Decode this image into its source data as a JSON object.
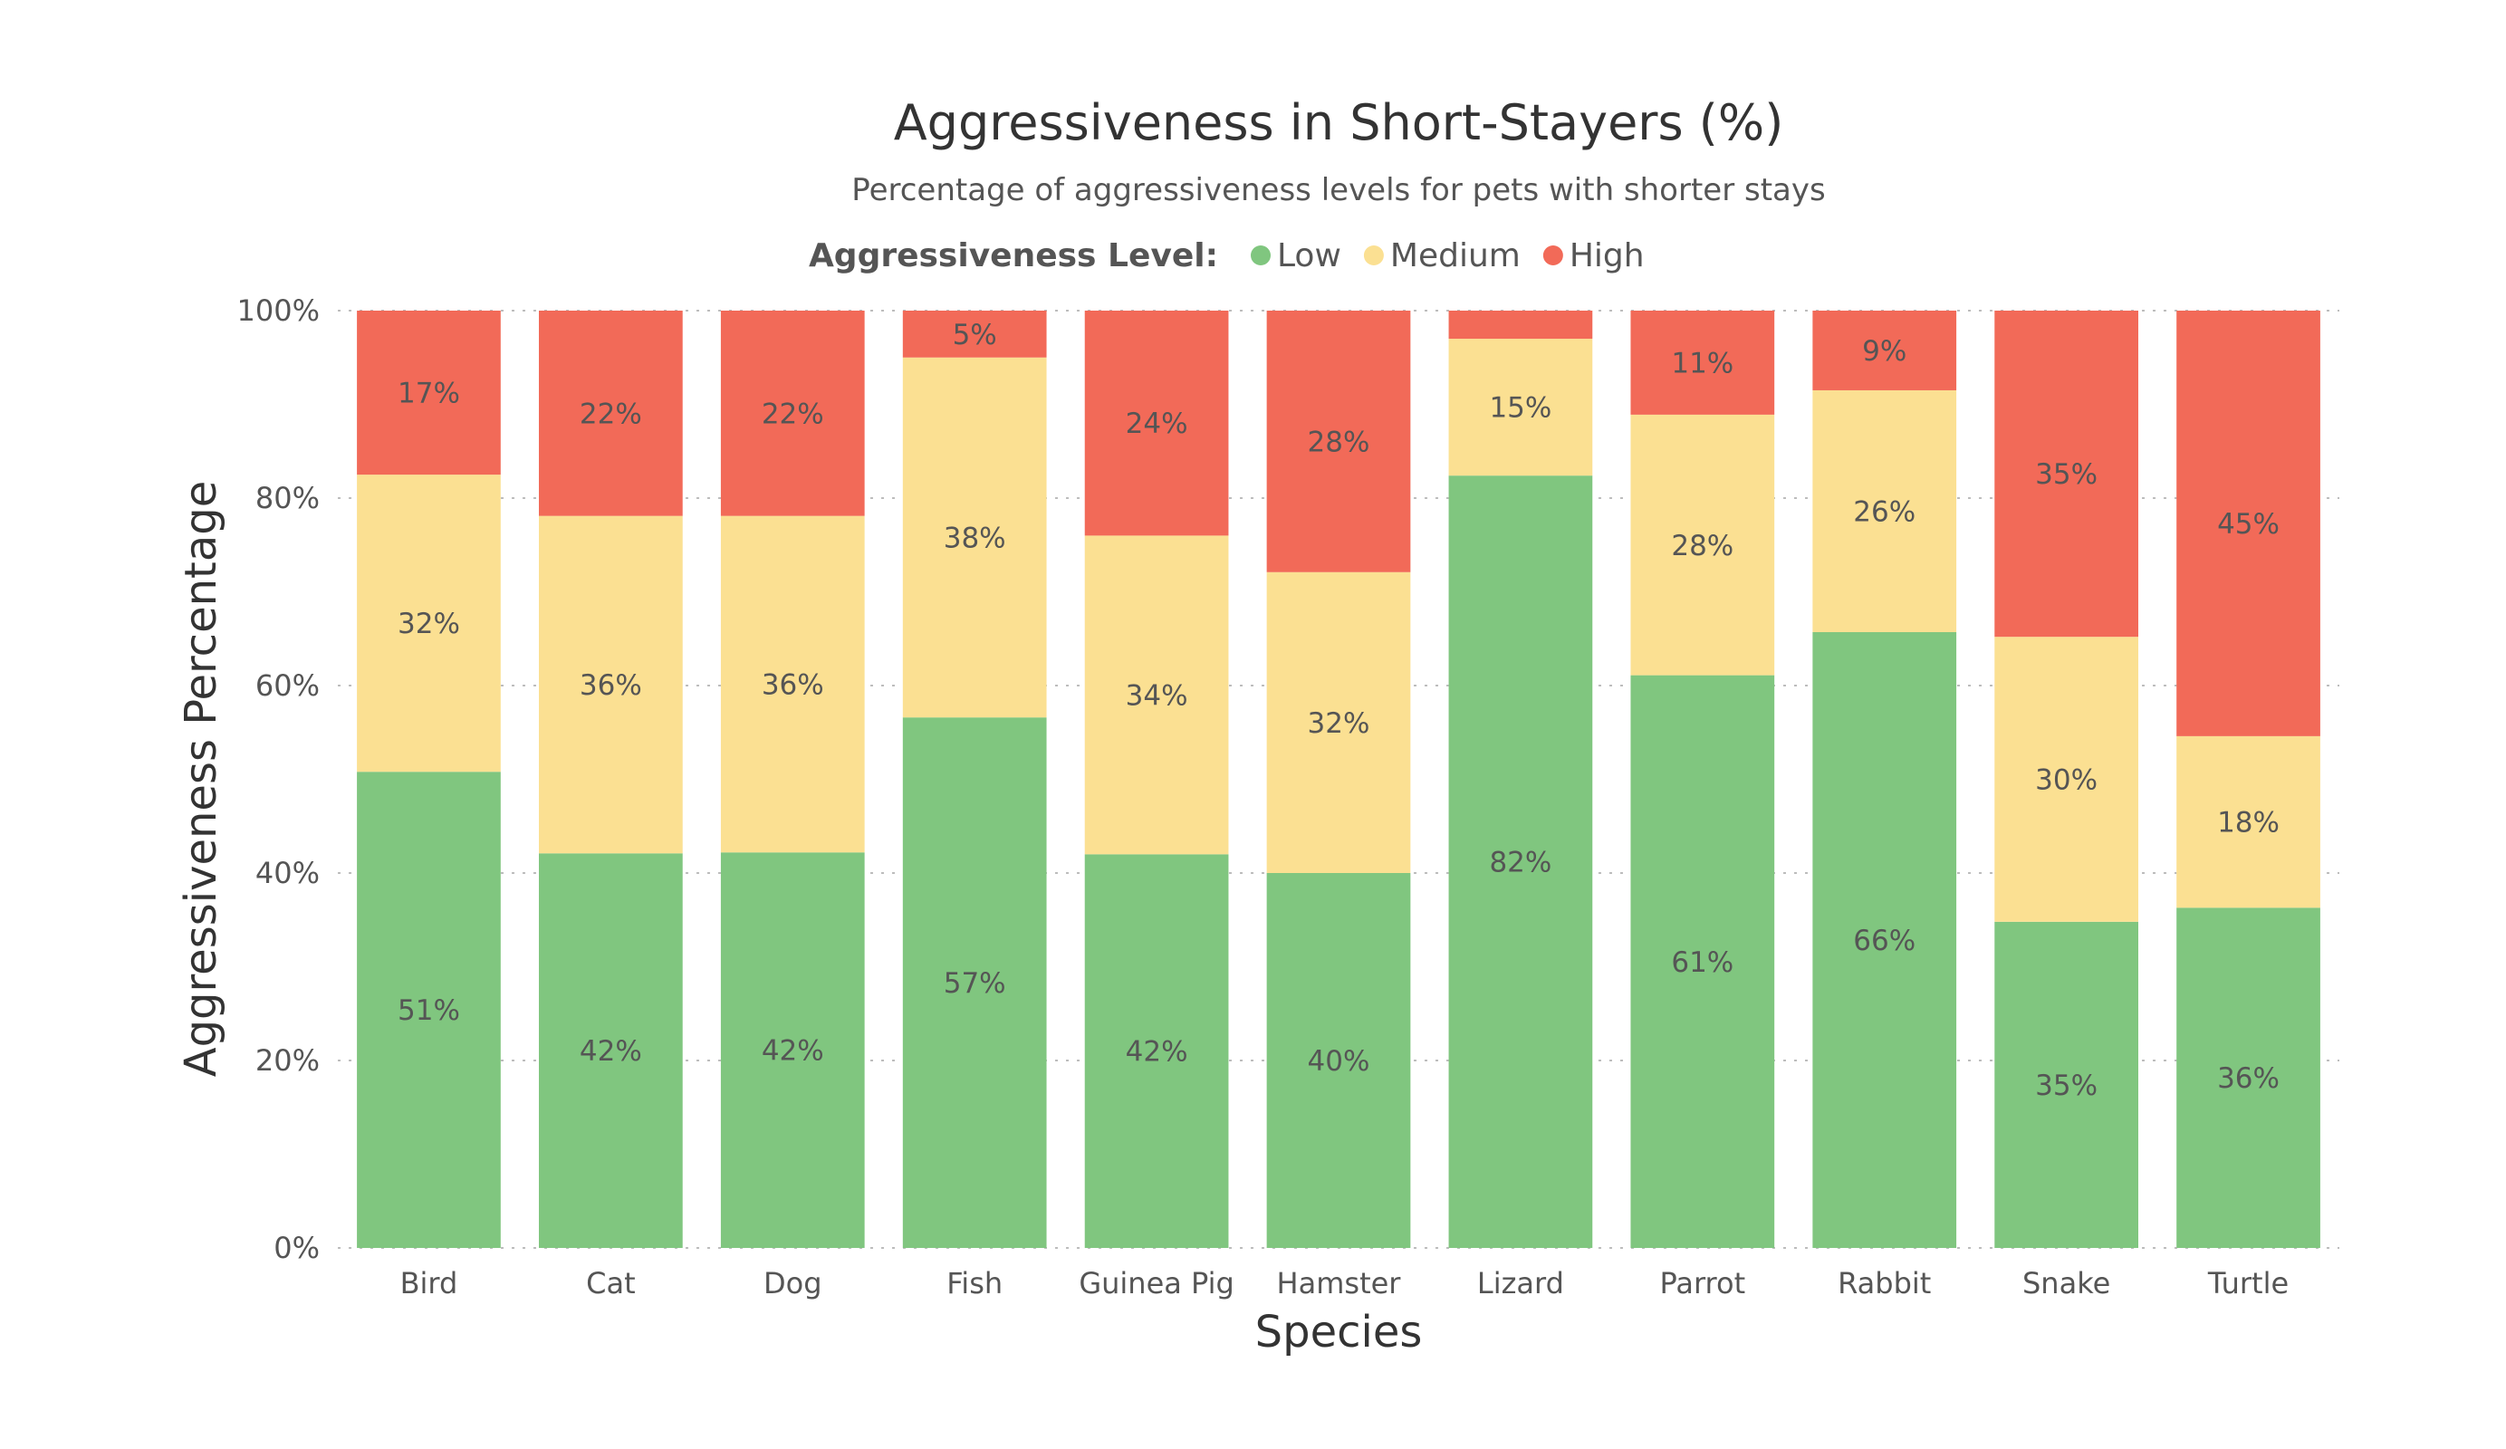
{
  "chart_data": {
    "type": "bar",
    "stacked": true,
    "title": "Aggressiveness in Short-Stayers (%)",
    "subtitle": "Percentage of aggressiveness levels for pets with shorter stays",
    "xlabel": "Species",
    "ylabel": "Aggressiveness Percentage",
    "ylim": [
      0,
      100
    ],
    "y_ticks": [
      0,
      20,
      40,
      60,
      80,
      100
    ],
    "y_tick_labels": [
      "0%",
      "20%",
      "40%",
      "60%",
      "80%",
      "100%"
    ],
    "grid": true,
    "legend": {
      "title": "Aggressiveness Level:",
      "placement": "top",
      "entries": [
        "Low",
        "Medium",
        "High"
      ]
    },
    "categories": [
      "Bird",
      "Cat",
      "Dog",
      "Fish",
      "Guinea Pig",
      "Hamster",
      "Lizard",
      "Parrot",
      "Rabbit",
      "Snake",
      "Turtle"
    ],
    "series": [
      {
        "name": "Low",
        "color": "#80c67f",
        "values": [
          50.8,
          42.1,
          42.2,
          56.6,
          42.0,
          40.0,
          82.4,
          61.1,
          65.7,
          34.8,
          36.3
        ],
        "labels": [
          "51%",
          "42%",
          "42%",
          "57%",
          "42%",
          "40%",
          "82%",
          "61%",
          "66%",
          "35%",
          "36%"
        ]
      },
      {
        "name": "Medium",
        "color": "#fbe092",
        "values": [
          31.7,
          36.0,
          35.9,
          38.4,
          34.0,
          32.1,
          14.6,
          27.8,
          25.8,
          30.4,
          18.3
        ],
        "labels": [
          "32%",
          "36%",
          "36%",
          "38%",
          "34%",
          "32%",
          "15%",
          "28%",
          "26%",
          "30%",
          "18%"
        ]
      },
      {
        "name": "High",
        "color": "#f26a58",
        "values": [
          17.5,
          21.9,
          21.9,
          5.0,
          24.0,
          27.9,
          3.0,
          11.1,
          8.5,
          34.8,
          45.4
        ],
        "labels": [
          "17%",
          "22%",
          "22%",
          "5%",
          "24%",
          "28%",
          "",
          "11%",
          "9%",
          "35%",
          "45%"
        ]
      }
    ]
  }
}
